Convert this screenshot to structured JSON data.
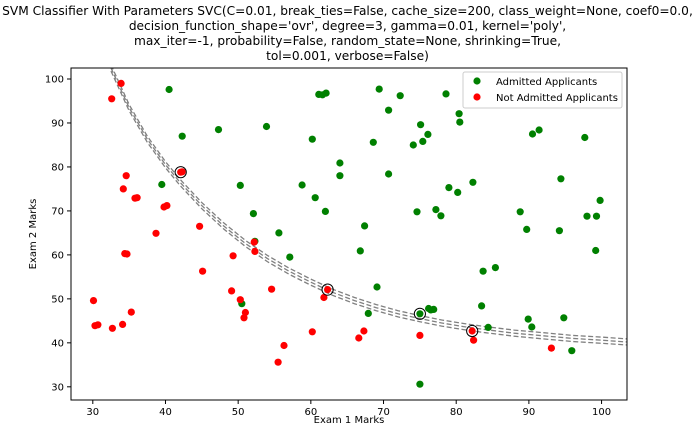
{
  "title_lines": [
    "SVM Classifier With Parameters SVC(C=0.01, break_ties=False, cache_size=200, class_weight=None, coef0=0.0,",
    "decision_function_shape='ovr', degree=3, gamma=0.01, kernel='poly',",
    "max_iter=-1, probability=False, random_state=None, shrinking=True,",
    "tol=0.001, verbose=False)"
  ],
  "chart_data": {
    "type": "scatter",
    "xlabel": "Exam 1 Marks",
    "ylabel": "Exam 2 Marks",
    "xlim": [
      27,
      103.5
    ],
    "ylim": [
      27,
      102.5
    ],
    "xticks": [
      30,
      40,
      50,
      60,
      70,
      80,
      90,
      100
    ],
    "yticks": [
      30,
      40,
      50,
      60,
      70,
      80,
      90,
      100
    ],
    "grid": false,
    "legend_position": "top-right",
    "series": [
      {
        "name": "Admitted Applicants",
        "color": "#008000",
        "points": [
          [
            60.2,
            86.3
          ],
          [
            79.0,
            75.3
          ],
          [
            61.1,
            96.5
          ],
          [
            75.0,
            46.6
          ],
          [
            76.1,
            87.4
          ],
          [
            84.4,
            43.5
          ],
          [
            95.9,
            38.2
          ],
          [
            75.0,
            30.6
          ],
          [
            82.3,
            76.5
          ],
          [
            69.4,
            97.7
          ],
          [
            39.5,
            76.0
          ],
          [
            53.9,
            89.2
          ],
          [
            69.1,
            52.7
          ],
          [
            67.9,
            46.7
          ],
          [
            70.7,
            92.9
          ],
          [
            76.9,
            47.6
          ],
          [
            67.4,
            66.6
          ],
          [
            89.7,
            65.8
          ],
          [
            50.5,
            48.9
          ],
          [
            50.3,
            75.8
          ],
          [
            75.4,
            85.8
          ],
          [
            52.3,
            63.1
          ],
          [
            64.0,
            80.9
          ],
          [
            94.4,
            77.3
          ],
          [
            77.2,
            70.3
          ],
          [
            99.8,
            72.4
          ],
          [
            62.1,
            96.8
          ],
          [
            99.3,
            68.8
          ],
          [
            42.3,
            87.0
          ],
          [
            94.8,
            45.7
          ],
          [
            97.7,
            86.7
          ],
          [
            77.9,
            68.9
          ],
          [
            89.9,
            45.4
          ],
          [
            80.5,
            90.2
          ],
          [
            83.5,
            48.4
          ],
          [
            85.4,
            57.1
          ],
          [
            78.6,
            96.6
          ],
          [
            52.1,
            69.4
          ],
          [
            80.2,
            74.2
          ],
          [
            70.7,
            78.4
          ],
          [
            40.5,
            97.6
          ],
          [
            90.4,
            43.6
          ],
          [
            90.5,
            87.5
          ],
          [
            47.3,
            88.5
          ],
          [
            57.1,
            59.5
          ],
          [
            74.6,
            69.8
          ],
          [
            98.0,
            68.8
          ],
          [
            58.8,
            75.9
          ],
          [
            83.7,
            56.3
          ],
          [
            66.8,
            60.9
          ],
          [
            91.4,
            88.4
          ],
          [
            64.0,
            78.0
          ],
          [
            80.4,
            92.1
          ],
          [
            62.0,
            69.9
          ],
          [
            88.8,
            69.8
          ],
          [
            55.6,
            65.0
          ],
          [
            60.6,
            73.0
          ],
          [
            68.6,
            85.6
          ],
          [
            74.1,
            85.0
          ],
          [
            75.1,
            89.6
          ],
          [
            72.3,
            96.2
          ],
          [
            99.2,
            61.0
          ],
          [
            76.5,
            47.5
          ],
          [
            94.2,
            65.5
          ],
          [
            76.2,
            47.8
          ],
          [
            61.6,
            96.4
          ]
        ]
      },
      {
        "name": "Not Admitted Applicants",
        "color": "#ff0000",
        "points": [
          [
            34.6,
            78.0
          ],
          [
            30.3,
            43.9
          ],
          [
            35.8,
            72.9
          ],
          [
            45.1,
            56.3
          ],
          [
            34.2,
            75.0
          ],
          [
            39.8,
            70.9
          ],
          [
            51.0,
            46.9
          ],
          [
            32.7,
            43.3
          ],
          [
            34.1,
            44.2
          ],
          [
            49.1,
            51.8
          ],
          [
            44.7,
            66.5
          ],
          [
            61.8,
            50.3
          ],
          [
            60.2,
            42.5
          ],
          [
            54.6,
            52.2
          ],
          [
            82.2,
            42.7
          ],
          [
            34.7,
            60.2
          ],
          [
            62.3,
            52.1
          ],
          [
            75.0,
            41.7
          ],
          [
            56.3,
            39.4
          ],
          [
            42.1,
            78.8
          ],
          [
            30.1,
            49.6
          ],
          [
            33.9,
            99.0
          ],
          [
            49.3,
            59.8
          ],
          [
            55.5,
            35.6
          ],
          [
            32.6,
            95.5
          ],
          [
            35.3,
            47.0
          ],
          [
            50.3,
            49.8
          ],
          [
            38.7,
            64.9
          ],
          [
            40.2,
            71.2
          ],
          [
            52.3,
            60.8
          ],
          [
            66.6,
            41.1
          ],
          [
            50.8,
            45.7
          ],
          [
            42.3,
            78.9
          ],
          [
            67.3,
            42.7
          ],
          [
            93.1,
            38.8
          ],
          [
            82.4,
            40.6
          ],
          [
            52.2,
            62.9
          ],
          [
            34.4,
            60.3
          ],
          [
            30.7,
            44.1
          ],
          [
            36.1,
            73.0
          ]
        ]
      }
    ],
    "support_vectors": [
      [
        42.1,
        78.8
      ],
      [
        62.3,
        52.1
      ],
      [
        75.0,
        46.6
      ],
      [
        82.2,
        42.7
      ]
    ],
    "decision_boundary": {
      "levels": [
        -1,
        0,
        1
      ],
      "line_style": "dashed",
      "color": "#808080",
      "points": [
        [
          32.5,
          102.5
        ],
        [
          35.0,
          93.5
        ],
        [
          37.5,
          86.3
        ],
        [
          40.0,
          80.5
        ],
        [
          42.0,
          76.5
        ],
        [
          45.0,
          71.2
        ],
        [
          48.0,
          66.6
        ],
        [
          51.0,
          62.6
        ],
        [
          54.0,
          59.2
        ],
        [
          57.0,
          56.3
        ],
        [
          60.0,
          53.8
        ],
        [
          63.0,
          51.5
        ],
        [
          66.0,
          49.6
        ],
        [
          69.0,
          48.0
        ],
        [
          72.0,
          46.6
        ],
        [
          75.0,
          45.5
        ],
        [
          78.0,
          44.5
        ],
        [
          81.0,
          43.7
        ],
        [
          84.0,
          43.0
        ],
        [
          88.0,
          42.2
        ],
        [
          92.0,
          41.6
        ],
        [
          96.0,
          41.0
        ],
        [
          100.0,
          40.6
        ],
        [
          103.5,
          40.2
        ]
      ],
      "margin_offset": 0.7
    }
  }
}
